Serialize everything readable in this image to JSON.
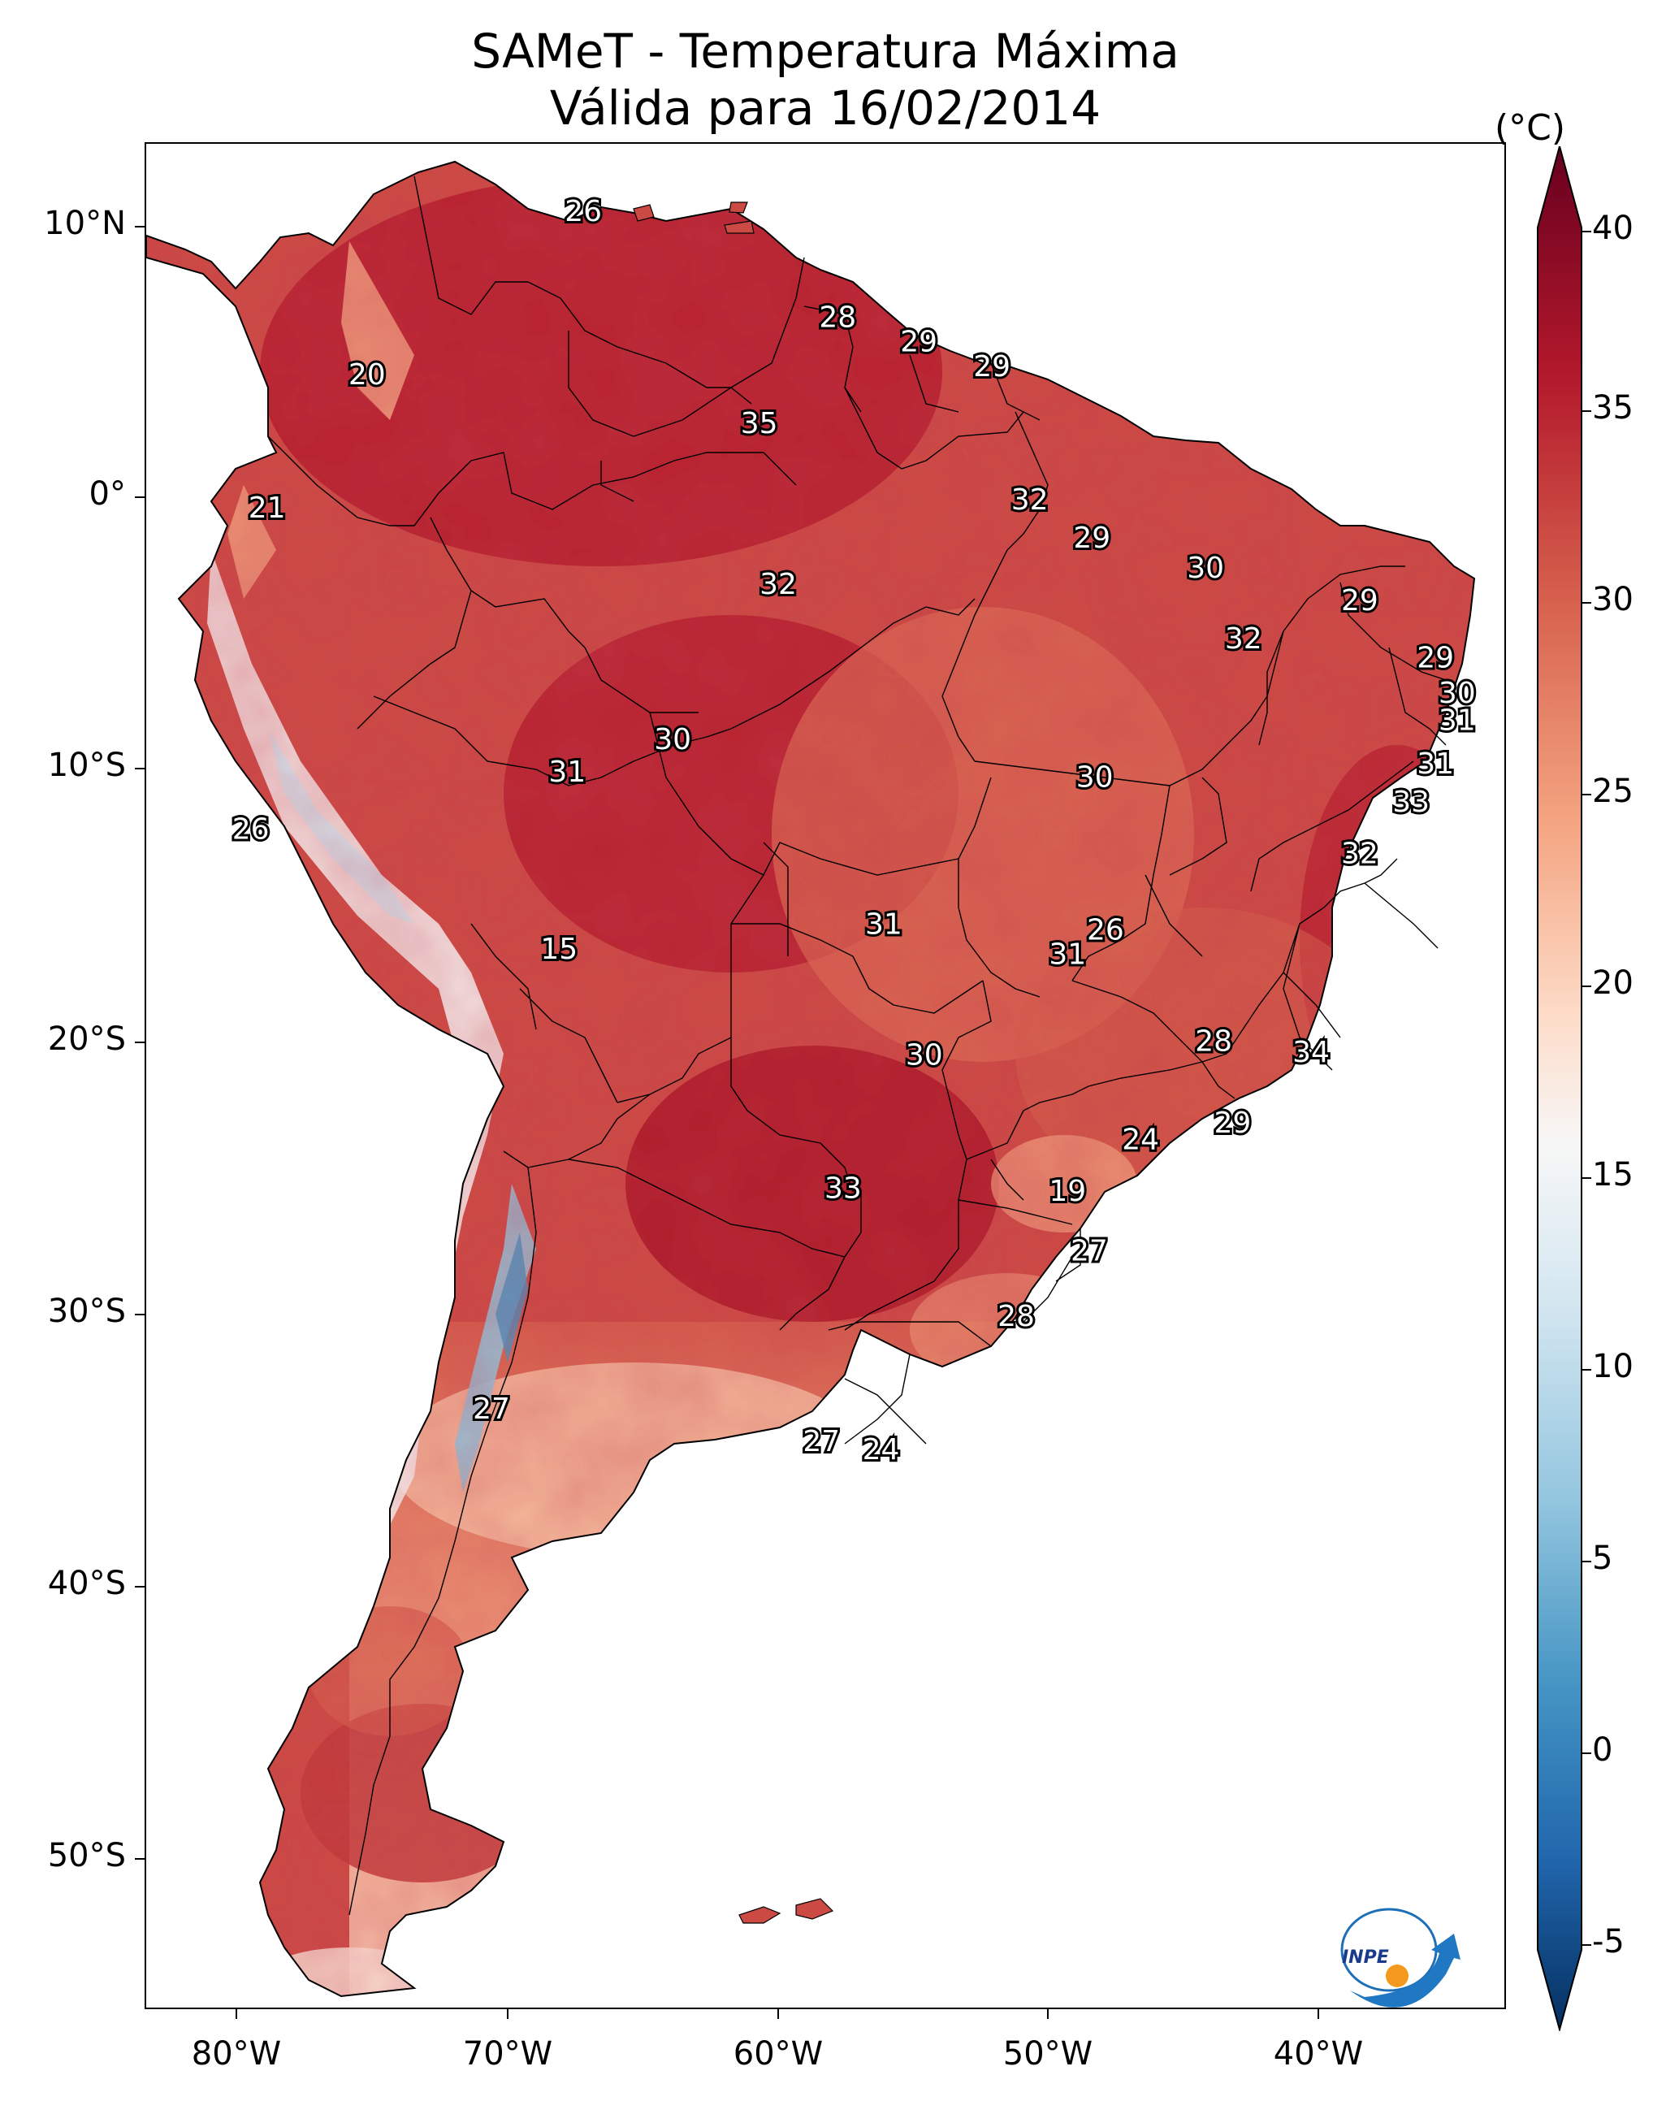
{
  "title": {
    "line1": "SAMeT - Temperatura Máxima",
    "line2": "Válida para 16/02/2014"
  },
  "axes": {
    "lat_labels": [
      "10°N",
      "0°",
      "10°S",
      "20°S",
      "30°S",
      "40°S",
      "50°S"
    ],
    "lon_labels": [
      "80°W",
      "70°W",
      "60°W",
      "50°W",
      "40°W"
    ]
  },
  "colorbar": {
    "unit": "(°C)",
    "ticks": [
      "40",
      "35",
      "30",
      "25",
      "20",
      "15",
      "10",
      "5",
      "0",
      "-5"
    ],
    "min": -5,
    "max": 40,
    "colors": {
      "cold": "#053061",
      "mid_cold": "#4393c3",
      "neutral": "#f7f7f7",
      "mid_warm": "#d6604d",
      "hot": "#67001f"
    }
  },
  "stations": [
    {
      "label": "26",
      "lon": -67.2,
      "lat": 10.6
    },
    {
      "label": "20",
      "lon": -75.2,
      "lat": 4.6
    },
    {
      "label": "28",
      "lon": -57.8,
      "lat": 6.7
    },
    {
      "label": "29",
      "lon": -54.8,
      "lat": 5.8
    },
    {
      "label": "29",
      "lon": -52.1,
      "lat": 4.9
    },
    {
      "label": "35",
      "lon": -60.7,
      "lat": 2.8
    },
    {
      "label": "21",
      "lon": -78.9,
      "lat": -0.3
    },
    {
      "label": "32",
      "lon": -50.7,
      "lat": 0.0
    },
    {
      "label": "29",
      "lon": -48.4,
      "lat": -1.4
    },
    {
      "label": "30",
      "lon": -44.2,
      "lat": -2.5
    },
    {
      "label": "32",
      "lon": -60.0,
      "lat": -3.1
    },
    {
      "label": "29",
      "lon": -38.5,
      "lat": -3.7
    },
    {
      "label": "32",
      "lon": -42.8,
      "lat": -5.1
    },
    {
      "label": "29",
      "lon": -35.7,
      "lat": -5.8
    },
    {
      "label": "30",
      "lon": -34.9,
      "lat": -7.1
    },
    {
      "label": "31",
      "lon": -34.9,
      "lat": -8.1
    },
    {
      "label": "30",
      "lon": -63.9,
      "lat": -8.8
    },
    {
      "label": "31",
      "lon": -67.8,
      "lat": -10.0
    },
    {
      "label": "31",
      "lon": -35.7,
      "lat": -9.7
    },
    {
      "label": "30",
      "lon": -48.3,
      "lat": -10.2
    },
    {
      "label": "33",
      "lon": -36.6,
      "lat": -11.1
    },
    {
      "label": "26",
      "lon": -79.5,
      "lat": -12.1
    },
    {
      "label": "32",
      "lon": -38.5,
      "lat": -13.0
    },
    {
      "label": "26",
      "lon": -47.9,
      "lat": -15.8
    },
    {
      "label": "31",
      "lon": -56.1,
      "lat": -15.6
    },
    {
      "label": "31",
      "lon": -49.3,
      "lat": -16.7
    },
    {
      "label": "15",
      "lon": -68.1,
      "lat": -16.5
    },
    {
      "label": "28",
      "lon": -43.9,
      "lat": -19.9
    },
    {
      "label": "34",
      "lon": -40.3,
      "lat": -20.3
    },
    {
      "label": "30",
      "lon": -54.6,
      "lat": -20.4
    },
    {
      "label": "29",
      "lon": -43.2,
      "lat": -22.9
    },
    {
      "label": "24",
      "lon": -46.6,
      "lat": -23.5
    },
    {
      "label": "33",
      "lon": -57.6,
      "lat": -25.3
    },
    {
      "label": "19",
      "lon": -49.3,
      "lat": -25.4
    },
    {
      "label": "27",
      "lon": -48.5,
      "lat": -27.6
    },
    {
      "label": "28",
      "lon": -51.2,
      "lat": -30.0
    },
    {
      "label": "27",
      "lon": -70.6,
      "lat": -33.4
    },
    {
      "label": "27",
      "lon": -58.4,
      "lat": -34.6
    },
    {
      "label": "24",
      "lon": -56.2,
      "lat": -34.9
    }
  ],
  "logo": {
    "text": "INPE"
  }
}
